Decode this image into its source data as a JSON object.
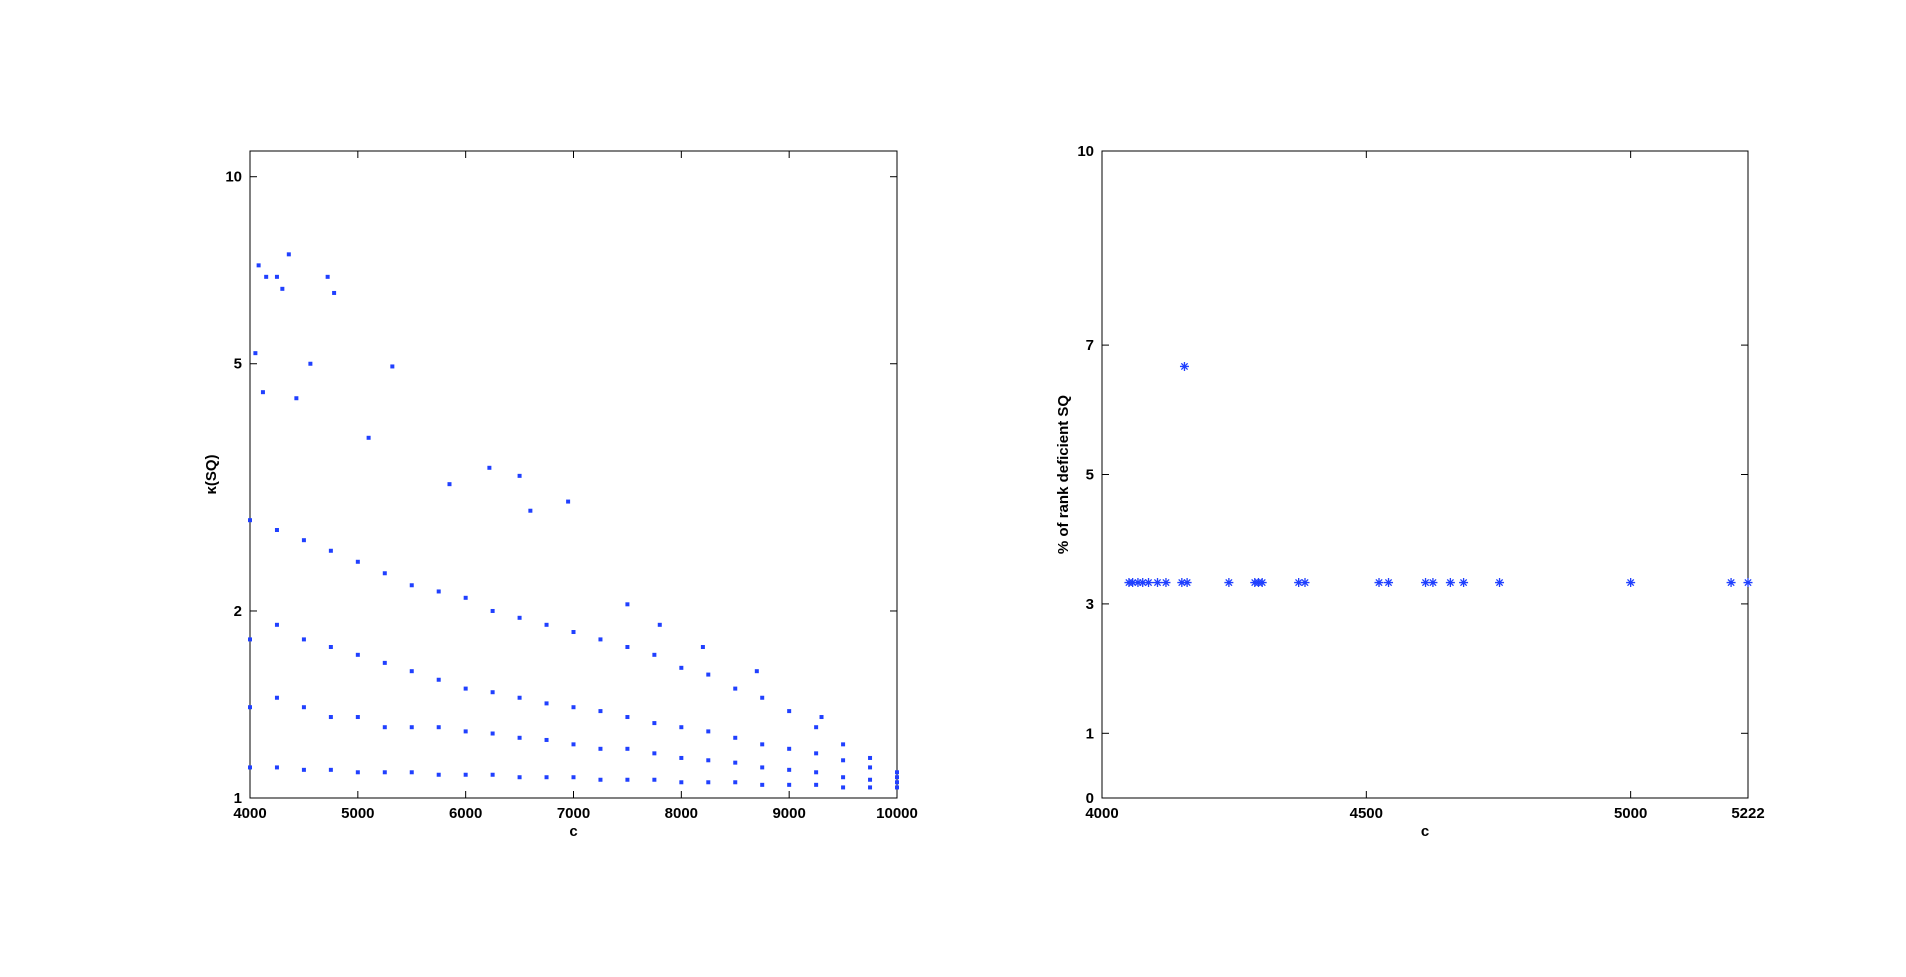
{
  "chart_data": [
    {
      "type": "scatter",
      "xlabel": "c",
      "ylabel": "κ(SQ)",
      "color": "#2040ff",
      "marker": "square",
      "log_y": true,
      "xlim": [
        4000,
        10000
      ],
      "xticks": [
        4000,
        5000,
        6000,
        7000,
        8000,
        9000,
        10000
      ],
      "ylim": [
        1,
        11
      ],
      "yticks": [
        1,
        2,
        5,
        10
      ],
      "x": [
        4000,
        4000,
        4000,
        4000,
        4250,
        4250,
        4250,
        4250,
        4500,
        4500,
        4500,
        4500,
        4750,
        4750,
        4750,
        4750,
        5000,
        5000,
        5000,
        5000,
        5250,
        5250,
        5250,
        5250,
        5500,
        5500,
        5500,
        5500,
        5750,
        5750,
        5750,
        5750,
        6000,
        6000,
        6000,
        6000,
        6250,
        6250,
        6250,
        6250,
        6500,
        6500,
        6500,
        6500,
        6750,
        6750,
        6750,
        6750,
        7000,
        7000,
        7000,
        7000,
        7250,
        7250,
        7250,
        7250,
        7500,
        7500,
        7500,
        7500,
        7750,
        7750,
        7750,
        7750,
        8000,
        8000,
        8000,
        8000,
        8250,
        8250,
        8250,
        8250,
        8500,
        8500,
        8500,
        8500,
        8750,
        8750,
        8750,
        8750,
        9000,
        9000,
        9000,
        9000,
        9250,
        9250,
        9250,
        9250,
        9500,
        9500,
        9500,
        9500,
        9750,
        9750,
        9750,
        9750,
        10000,
        10000,
        10000,
        10000,
        4080,
        4360,
        4150,
        4250,
        4300,
        4720,
        4780,
        4050,
        4560,
        5320,
        4120,
        4430,
        5100,
        6220,
        6500,
        5850,
        6950,
        6600,
        7800,
        7500,
        8200,
        8700,
        9300
      ],
      "values": [
        1.12,
        1.4,
        1.8,
        2.8,
        1.12,
        1.45,
        1.9,
        2.7,
        1.11,
        1.4,
        1.8,
        2.6,
        1.11,
        1.35,
        1.75,
        2.5,
        1.1,
        1.35,
        1.7,
        2.4,
        1.1,
        1.3,
        1.65,
        2.3,
        1.1,
        1.3,
        1.6,
        2.2,
        1.09,
        1.3,
        1.55,
        2.15,
        1.09,
        1.28,
        1.5,
        2.1,
        1.09,
        1.27,
        1.48,
        2.0,
        1.08,
        1.25,
        1.45,
        1.95,
        1.08,
        1.24,
        1.42,
        1.9,
        1.08,
        1.22,
        1.4,
        1.85,
        1.07,
        1.2,
        1.38,
        1.8,
        1.07,
        1.2,
        1.35,
        1.75,
        1.07,
        1.18,
        1.32,
        1.7,
        1.06,
        1.16,
        1.3,
        1.62,
        1.06,
        1.15,
        1.28,
        1.58,
        1.06,
        1.14,
        1.25,
        1.5,
        1.05,
        1.12,
        1.22,
        1.45,
        1.05,
        1.11,
        1.2,
        1.38,
        1.05,
        1.1,
        1.18,
        1.3,
        1.04,
        1.08,
        1.15,
        1.22,
        1.04,
        1.07,
        1.12,
        1.16,
        1.04,
        1.06,
        1.08,
        1.1,
        7.2,
        7.5,
        6.9,
        6.9,
        6.6,
        6.9,
        6.5,
        5.2,
        5.0,
        4.95,
        4.5,
        4.4,
        3.8,
        3.4,
        3.3,
        3.2,
        3.0,
        2.9,
        1.9,
        2.05,
        1.75,
        1.6,
        1.35
      ]
    },
    {
      "type": "scatter",
      "xlabel": "c",
      "ylabel": "% of rank deficient SQ",
      "color": "#2040ff",
      "marker": "asterisk",
      "log_y": false,
      "xlim": [
        4000,
        5222
      ],
      "xticks": [
        4000,
        4500,
        5000,
        5222
      ],
      "ylim": [
        0,
        10
      ],
      "yticks": [
        0,
        1,
        3,
        5,
        7,
        10
      ],
      "x": [
        4051,
        4058,
        4068,
        4077,
        4088,
        4105,
        4121,
        4151,
        4156,
        4161,
        4240,
        4289,
        4296,
        4303,
        4372,
        4384,
        4524,
        4542,
        4612,
        4626,
        4659,
        4684,
        4752,
        5000,
        5190,
        5222
      ],
      "values": [
        3.33,
        3.33,
        3.33,
        3.33,
        3.33,
        3.33,
        3.33,
        3.33,
        6.67,
        3.33,
        3.33,
        3.33,
        3.33,
        3.33,
        3.33,
        3.33,
        3.33,
        3.33,
        3.33,
        3.33,
        3.33,
        3.33,
        3.33,
        3.33,
        3.33,
        3.33
      ]
    }
  ]
}
